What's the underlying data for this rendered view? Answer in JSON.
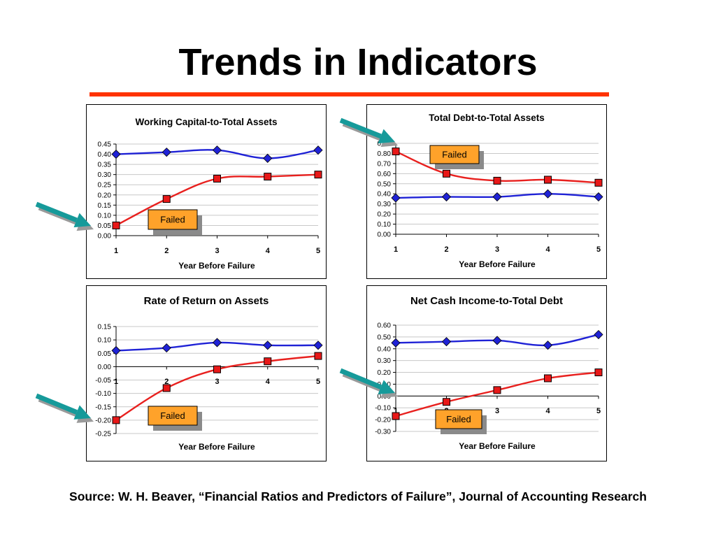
{
  "title": "Trends in Indicators",
  "source": "Source: W. H. Beaver, “Financial Ratios and Predictors of Failure”, Journal of Accounting Research",
  "colors": {
    "rule": "#ff3300",
    "nonfailed": "#1f22d6",
    "failed": "#e8201e",
    "failed_marker": "#e81818",
    "callout_fill": "#ffa22a",
    "arrow": "#169a9a",
    "shadow": "#8a8a8a"
  },
  "failed_label": "Failed",
  "chart_data": [
    {
      "id": "wcta",
      "type": "line",
      "title": "Working Capital-to-Total Assets",
      "xlabel": "Year Before Failure",
      "ylabel": "",
      "x": [
        1,
        2,
        3,
        4,
        5
      ],
      "ylim": [
        0,
        0.45
      ],
      "yticks": [
        "0.00",
        "0.05",
        "0.10",
        "0.15",
        "0.20",
        "0.25",
        "0.30",
        "0.35",
        "0.40",
        "0.45"
      ],
      "xticks": [
        "1",
        "2",
        "3",
        "4",
        "5"
      ],
      "grid": true,
      "series": [
        {
          "key": "nonfailed",
          "values": [
            0.4,
            0.41,
            0.42,
            0.38,
            0.42
          ]
        },
        {
          "key": "failed",
          "values": [
            0.05,
            0.18,
            0.28,
            0.29,
            0.3
          ]
        }
      ]
    },
    {
      "id": "tdta",
      "type": "line",
      "title": "Total Debt-to-Total Assets",
      "xlabel": "Year Before Failure",
      "ylabel": "",
      "x": [
        1,
        2,
        3,
        4,
        5
      ],
      "ylim": [
        0,
        0.9
      ],
      "yticks": [
        "0.00",
        "0.10",
        "0.20",
        "0.30",
        "0.40",
        "0.50",
        "0.60",
        "0.70",
        "0.80",
        "0.90"
      ],
      "xticks": [
        "1",
        "2",
        "3",
        "4",
        "5"
      ],
      "grid": true,
      "series": [
        {
          "key": "nonfailed",
          "values": [
            0.36,
            0.37,
            0.37,
            0.4,
            0.37
          ]
        },
        {
          "key": "failed",
          "values": [
            0.82,
            0.6,
            0.53,
            0.54,
            0.51
          ]
        }
      ]
    },
    {
      "id": "roa",
      "type": "line",
      "title": "Rate of Return on Assets",
      "xlabel": "Year Before Failure",
      "ylabel": "",
      "x": [
        1,
        2,
        3,
        4,
        5
      ],
      "ylim": [
        -0.25,
        0.15
      ],
      "yticks": [
        "-0.25",
        "-0.20",
        "-0.15",
        "-0.10",
        "-0.05",
        "0.00",
        "0.05",
        "0.10",
        "0.15"
      ],
      "xticks": [
        "1",
        "2",
        "3",
        "4",
        "5"
      ],
      "grid": true,
      "series": [
        {
          "key": "nonfailed",
          "values": [
            0.06,
            0.07,
            0.09,
            0.08,
            0.08
          ]
        },
        {
          "key": "failed",
          "values": [
            -0.2,
            -0.08,
            -0.01,
            0.02,
            0.04
          ]
        }
      ]
    },
    {
      "id": "ncitd",
      "type": "line",
      "title": "Net Cash Income-to-Total Debt",
      "xlabel": "Year Before Failure",
      "ylabel": "",
      "x": [
        1,
        2,
        3,
        4,
        5
      ],
      "ylim": [
        -0.3,
        0.6
      ],
      "yticks": [
        "-0.30",
        "-0.20",
        "-0.10",
        "0.00",
        "0.10",
        "0.20",
        "0.30",
        "0.40",
        "0.50",
        "0.60"
      ],
      "xticks": [
        "1",
        "2",
        "3",
        "4",
        "5"
      ],
      "grid": true,
      "series": [
        {
          "key": "nonfailed",
          "values": [
            0.45,
            0.46,
            0.47,
            0.43,
            0.52
          ]
        },
        {
          "key": "failed",
          "values": [
            -0.17,
            -0.05,
            0.05,
            0.15,
            0.2
          ]
        }
      ]
    }
  ]
}
